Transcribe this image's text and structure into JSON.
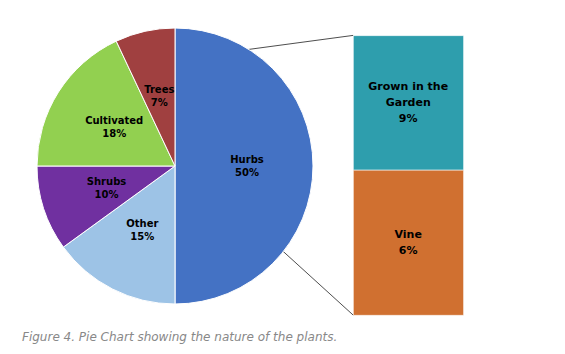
{
  "chart_data": {
    "type": "pie",
    "title": "Figure 4. Pie Chart showing the nature of the plants.",
    "categories": [
      "Hurbs",
      "Other",
      "Shrubs",
      "Cultivated",
      "Trees"
    ],
    "values": [
      50,
      15,
      10,
      18,
      7
    ],
    "value_labels": [
      "50%",
      "15%",
      "10%",
      "18%",
      "7%"
    ],
    "colors": [
      "#4472C4",
      "#9DC3E6",
      "#7030A0",
      "#92D050",
      "#A04040"
    ],
    "data_labels": true,
    "annotations": [
      {
        "text": "Grown in the\nGarden",
        "value": 9,
        "value_label": "9%",
        "color": "#2E9EAD"
      },
      {
        "text": "Vine",
        "value": 6,
        "value_label": "6%",
        "color": "#D07030"
      }
    ]
  }
}
